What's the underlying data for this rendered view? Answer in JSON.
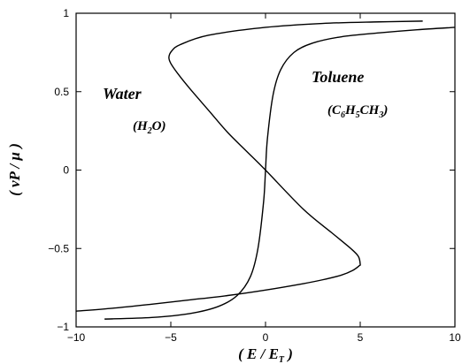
{
  "chart_data": {
    "type": "line",
    "xlabel_parts": [
      "( ",
      "E",
      " / ",
      "E",
      "T",
      " )"
    ],
    "ylabel_parts": [
      "( ",
      "νP",
      " / ",
      "μ",
      " )"
    ],
    "xlim": [
      -10,
      10
    ],
    "ylim": [
      -1,
      1
    ],
    "xticks": [
      -10,
      -5,
      0,
      5,
      10
    ],
    "yticks": [
      -1,
      -0.5,
      0,
      0.5,
      1
    ],
    "xtick_labels": [
      "−10",
      "−5",
      "0",
      "5",
      "10"
    ],
    "ytick_labels": [
      "−1",
      "−0.5",
      "0",
      "0.5",
      "1"
    ],
    "grid": false,
    "series": [
      {
        "name": "Water",
        "formula_parts": [
          "(H",
          "2",
          "O)"
        ],
        "x": [
          -10.0,
          -8.0,
          -6.0,
          -4.0,
          -2.0,
          0.0,
          2.0,
          3.0,
          4.0,
          4.6,
          4.95,
          5.0,
          4.9,
          4.5,
          3.5,
          2.0,
          0.0,
          -1.0,
          -2.0,
          -3.0,
          -4.0,
          -4.6,
          -5.0,
          -5.1,
          -4.95,
          -4.5,
          -3.0,
          0.0,
          3.0,
          6.0,
          8.3
        ],
        "y": [
          -0.9,
          -0.88,
          -0.855,
          -0.828,
          -0.8,
          -0.765,
          -0.724,
          -0.7,
          -0.67,
          -0.64,
          -0.61,
          -0.6,
          -0.55,
          -0.5,
          -0.4,
          -0.25,
          0.0,
          0.12,
          0.24,
          0.38,
          0.52,
          0.61,
          0.68,
          0.72,
          0.76,
          0.8,
          0.86,
          0.91,
          0.935,
          0.945,
          0.95
        ]
      },
      {
        "name": "Toluene",
        "formula_parts": [
          "(C",
          "6",
          "H",
          "5",
          "CH",
          "3",
          ")"
        ],
        "x": [
          -8.5,
          -6.0,
          -4.0,
          -2.5,
          -1.5,
          -0.8,
          -0.4,
          -0.1,
          0.0,
          0.1,
          0.4,
          0.8,
          1.5,
          2.5,
          4.0,
          6.0,
          8.0,
          10.0
        ],
        "y": [
          -0.95,
          -0.94,
          -0.915,
          -0.87,
          -0.8,
          -0.68,
          -0.5,
          -0.2,
          0.0,
          0.2,
          0.48,
          0.64,
          0.75,
          0.81,
          0.85,
          0.875,
          0.895,
          0.91
        ]
      }
    ]
  }
}
